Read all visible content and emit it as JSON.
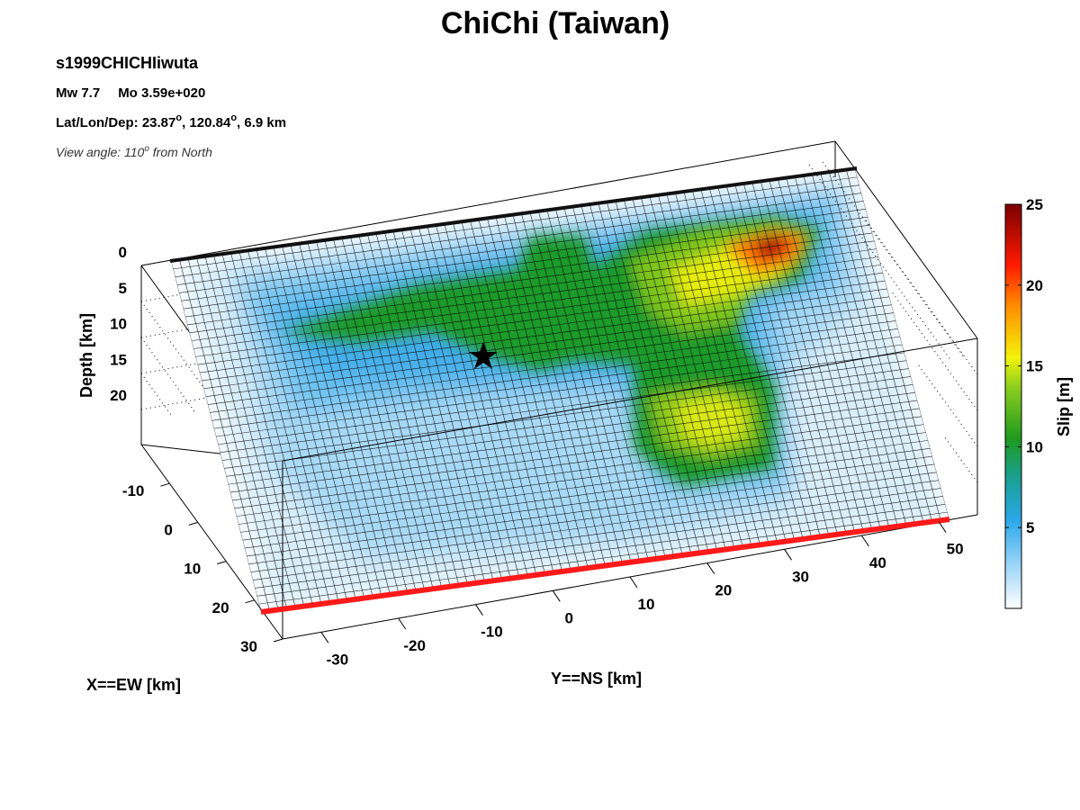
{
  "figure": {
    "title": "ChiChi (Taiwan)",
    "event_id": "s1999CHICHIiwuta",
    "magnitude_text": "Mw 7.7",
    "moment_text": "Mo 3.59e+020",
    "location_prefix": "Lat/Lon/Dep: 23.87",
    "location_lon": ", 120.84",
    "location_dep": ", 6.9 km",
    "degree_symbol": "o",
    "view_prefix": "View angle: 110",
    "view_suffix": " from North"
  },
  "chart_data": {
    "type": "heatmap",
    "title": "ChiChi (Taiwan)",
    "view_angle_deg_from_north": 110,
    "hypocenter": {
      "lat": 23.87,
      "lon": 120.84,
      "depth_km": 6.9,
      "marker": "star"
    },
    "axes": {
      "depth": {
        "label": "Depth [km]",
        "ticks": [
          "0",
          "5",
          "10",
          "15",
          "20"
        ],
        "range": [
          0,
          25
        ]
      },
      "x": {
        "label": "X==EW [km]",
        "ticks": [
          "-10",
          "0",
          "10",
          "20",
          "30"
        ],
        "range": [
          -20,
          30
        ]
      },
      "y": {
        "label": "Y==NS [km]",
        "ticks": [
          "-30",
          "-20",
          "-10",
          "0",
          "10",
          "20",
          "30",
          "40",
          "50"
        ],
        "range": [
          -35,
          55
        ]
      }
    },
    "colorbar": {
      "label": "Slip [m]",
      "ticks": [
        "5",
        "10",
        "15",
        "20",
        "25"
      ],
      "range": [
        0,
        25
      ],
      "colors": [
        "#ffffff",
        "#5ab9f2",
        "#1f9a1f",
        "#f2f20a",
        "#ff2a00",
        "#820000"
      ]
    },
    "slip_patches": [
      {
        "id": "northern-max",
        "along_strike_km": 42,
        "down_dip_km": 3,
        "slip_m": 24
      },
      {
        "id": "northern-upper",
        "along_strike_km": 34,
        "down_dip_km": 8,
        "slip_m": 14
      },
      {
        "id": "northern-deep",
        "along_strike_km": 24,
        "down_dip_km": 20,
        "slip_m": 13
      },
      {
        "id": "central",
        "along_strike_km": 5,
        "down_dip_km": 7,
        "slip_m": 8
      },
      {
        "id": "southern-band",
        "along_strike_km": -22,
        "down_dip_km": 10,
        "slip_m": 7
      }
    ],
    "lines": {
      "fault_trace_color": "#ff1a1a",
      "top_edge_color": "#000000"
    },
    "grid": true
  }
}
